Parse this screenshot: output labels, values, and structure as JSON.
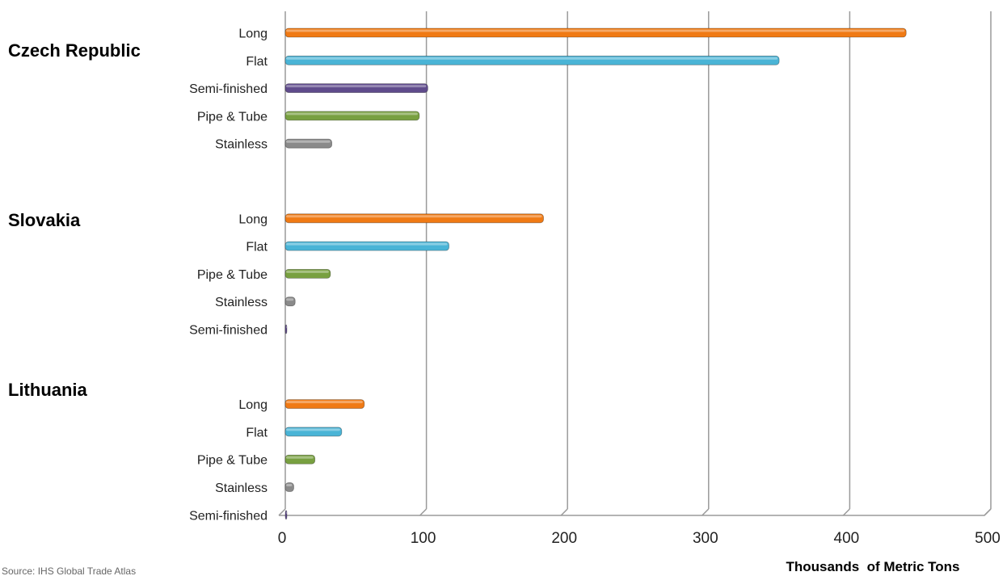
{
  "chart_data": {
    "type": "bar",
    "orientation": "horizontal",
    "xlabel": "Thousands  of Metric Tons",
    "xlim": [
      0,
      500
    ],
    "xticks": [
      0,
      100,
      200,
      300,
      400,
      500
    ],
    "grid": true,
    "source_note": "Source: IHS Global Trade Atlas",
    "groups": [
      {
        "name": "Czech Republic",
        "bars": [
          {
            "category": "Long",
            "value": 440
          },
          {
            "category": "Flat",
            "value": 350
          },
          {
            "category": "Semi-finished",
            "value": 101
          },
          {
            "category": "Pipe & Tube",
            "value": 95
          },
          {
            "category": "Stainless",
            "value": 33
          }
        ]
      },
      {
        "name": "Slovakia",
        "bars": [
          {
            "category": "Long",
            "value": 183
          },
          {
            "category": "Flat",
            "value": 116
          },
          {
            "category": "Pipe & Tube",
            "value": 32
          },
          {
            "category": "Stainless",
            "value": 7
          },
          {
            "category": "Semi-finished",
            "value": 1
          }
        ]
      },
      {
        "name": "Lithuania",
        "bars": [
          {
            "category": "Long",
            "value": 56
          },
          {
            "category": "Flat",
            "value": 40
          },
          {
            "category": "Pipe & Tube",
            "value": 21
          },
          {
            "category": "Stainless",
            "value": 6
          },
          {
            "category": "Semi-finished",
            "value": 1
          }
        ]
      }
    ]
  },
  "colors": {
    "Long": "#f07a14",
    "Flat": "#4ab4d6",
    "Semi-finished": "#5f4b8b",
    "Pipe & Tube": "#78a040",
    "Stainless": "#8a8a8a",
    "grid": "#9a9a9a"
  }
}
